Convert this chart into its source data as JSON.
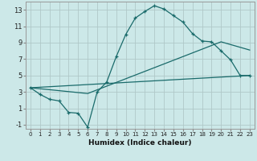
{
  "xlabel": "Humidex (Indice chaleur)",
  "ylabel": "",
  "bg_color": "#cce8e8",
  "grid_color": "#b0c8c8",
  "line_color": "#1a6b6b",
  "xlim": [
    -0.5,
    23.5
  ],
  "ylim": [
    -1.5,
    14.0
  ],
  "xticks": [
    0,
    1,
    2,
    3,
    4,
    5,
    6,
    7,
    8,
    9,
    10,
    11,
    12,
    13,
    14,
    15,
    16,
    17,
    18,
    19,
    20,
    21,
    22,
    23
  ],
  "yticks": [
    -1,
    1,
    3,
    5,
    7,
    9,
    11,
    13
  ],
  "curve1_x": [
    0,
    1,
    2,
    3,
    4,
    5,
    6,
    7,
    8,
    9,
    10,
    11,
    12,
    13,
    14,
    15,
    16,
    17,
    18,
    19,
    20,
    21,
    22,
    23
  ],
  "curve1_y": [
    3.5,
    2.7,
    2.1,
    1.9,
    0.5,
    0.4,
    -1.3,
    3.0,
    4.2,
    7.3,
    10.0,
    12.0,
    12.8,
    13.5,
    13.1,
    12.3,
    11.5,
    10.1,
    9.2,
    9.1,
    8.0,
    6.9,
    5.0,
    5.0
  ],
  "curve2_x": [
    0,
    6,
    20,
    23
  ],
  "curve2_y": [
    3.5,
    2.8,
    9.1,
    8.1
  ],
  "curve3_x": [
    0,
    23
  ],
  "curve3_y": [
    3.5,
    5.0
  ]
}
